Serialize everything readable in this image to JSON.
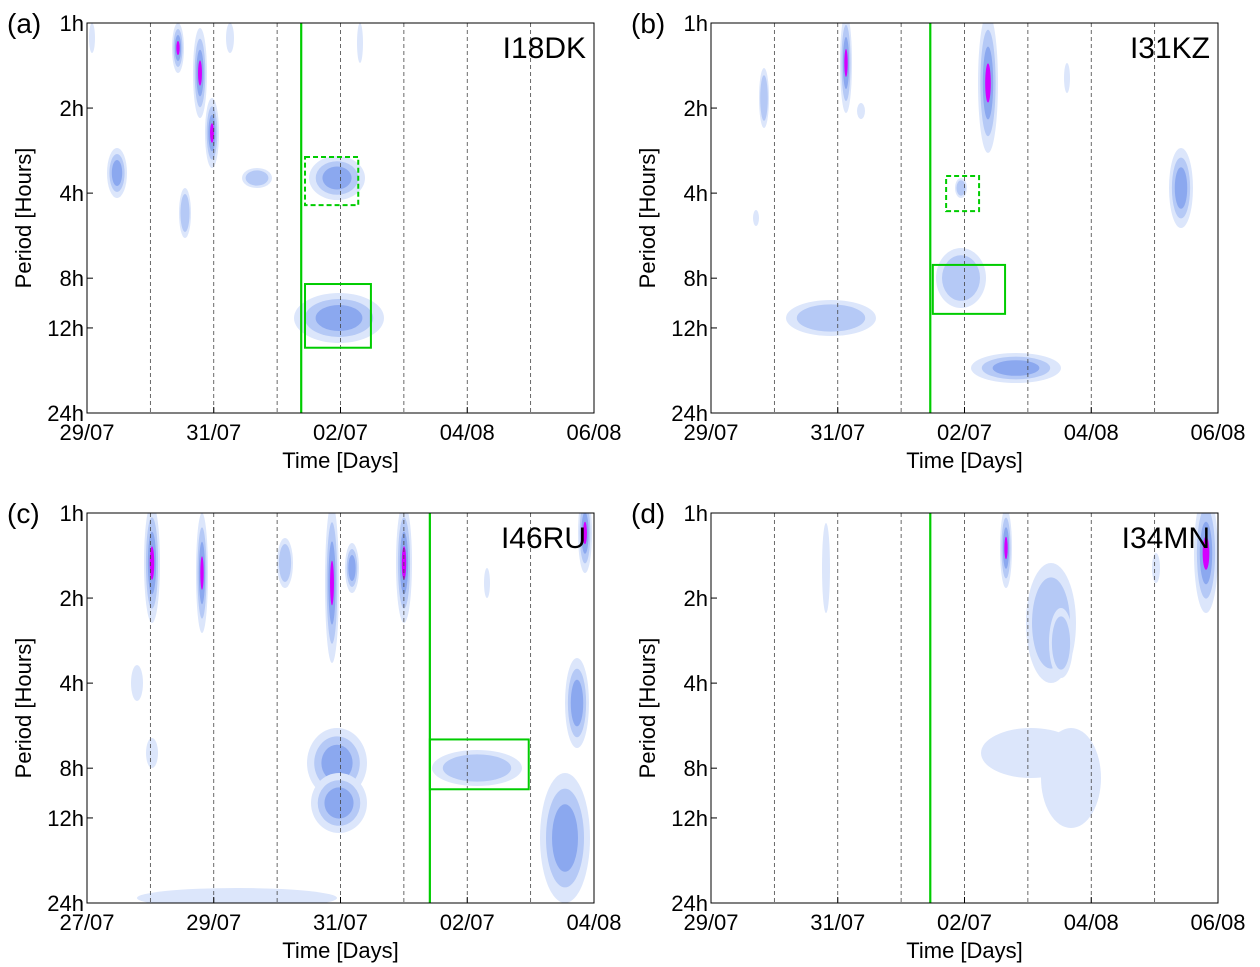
{
  "chart_data": [
    {
      "type": "contour",
      "panel_label": "(a)",
      "title": "I18DK",
      "xlabel": "Time [Days]",
      "ylabel": "Period [Hours]",
      "xlim": [
        0,
        8
      ],
      "xticks": [
        {
          "value": 0,
          "label": "29/07"
        },
        {
          "value": 2,
          "label": "31/07"
        },
        {
          "value": 4,
          "label": "02/07"
        },
        {
          "value": 6,
          "label": "04/08"
        },
        {
          "value": 8,
          "label": "06/08"
        }
      ],
      "ylim": [
        1,
        24
      ],
      "yticks": [
        {
          "value": 1,
          "label": "1h"
        },
        {
          "value": 2,
          "label": "2h"
        },
        {
          "value": 4,
          "label": "4h"
        },
        {
          "value": 8,
          "label": "8h"
        },
        {
          "value": 12,
          "label": "12h"
        },
        {
          "value": 24,
          "label": "24h"
        }
      ],
      "log_y": true,
      "day_lines": [
        1,
        2,
        3,
        4,
        5,
        6,
        7
      ],
      "event_line": 3.38,
      "event_color": "#00cc00",
      "boxes": [
        {
          "x": [
            3.44,
            4.28
          ],
          "y": [
            2.98,
            4.41
          ],
          "style": "dashed"
        },
        {
          "x": [
            3.44,
            4.48
          ],
          "y": [
            8.39,
            14.1
          ],
          "style": "solid"
        }
      ]
    },
    {
      "type": "contour",
      "panel_label": "(b)",
      "title": "I31KZ",
      "xlabel": "Time [Days]",
      "ylabel": "Period [Hours]",
      "xlim": [
        0,
        8
      ],
      "xticks": [
        {
          "value": 0,
          "label": "29/07"
        },
        {
          "value": 2,
          "label": "31/07"
        },
        {
          "value": 4,
          "label": "02/07"
        },
        {
          "value": 6,
          "label": "04/08"
        },
        {
          "value": 8,
          "label": "06/08"
        }
      ],
      "ylim": [
        1,
        24
      ],
      "yticks": [
        {
          "value": 1,
          "label": "1h"
        },
        {
          "value": 2,
          "label": "2h"
        },
        {
          "value": 4,
          "label": "4h"
        },
        {
          "value": 8,
          "label": "8h"
        },
        {
          "value": 12,
          "label": "12h"
        },
        {
          "value": 24,
          "label": "24h"
        }
      ],
      "log_y": true,
      "day_lines": [
        1,
        2,
        3,
        4,
        5,
        6,
        7
      ],
      "event_line": 3.46,
      "event_color": "#00cc00",
      "boxes": [
        {
          "x": [
            3.71,
            4.23
          ],
          "y": [
            3.48,
            4.63
          ],
          "style": "dashed"
        },
        {
          "x": [
            3.5,
            4.64
          ],
          "y": [
            7.18,
            10.7
          ],
          "style": "solid"
        }
      ]
    },
    {
      "type": "contour",
      "panel_label": "(c)",
      "title": "I46RU",
      "xlabel": "Time [Days]",
      "ylabel": "Period [Hours]",
      "xlim": [
        0,
        8
      ],
      "xticks": [
        {
          "value": 0,
          "label": "27/07"
        },
        {
          "value": 2,
          "label": "29/07"
        },
        {
          "value": 4,
          "label": "31/07"
        },
        {
          "value": 6,
          "label": "02/07"
        },
        {
          "value": 8,
          "label": "04/08"
        }
      ],
      "ylim": [
        1,
        24
      ],
      "yticks": [
        {
          "value": 1,
          "label": "1h"
        },
        {
          "value": 2,
          "label": "2h"
        },
        {
          "value": 4,
          "label": "4h"
        },
        {
          "value": 8,
          "label": "8h"
        },
        {
          "value": 12,
          "label": "12h"
        },
        {
          "value": 24,
          "label": "24h"
        }
      ],
      "log_y": true,
      "day_lines": [
        1,
        2,
        3,
        4,
        5,
        6,
        7
      ],
      "event_line": 5.41,
      "event_color": "#00cc00",
      "boxes": [
        {
          "x": [
            5.41,
            6.97
          ],
          "y": [
            6.33,
            9.5
          ],
          "style": "solid"
        }
      ]
    },
    {
      "type": "contour",
      "panel_label": "(d)",
      "title": "I34MN",
      "xlabel": "Time [Days]",
      "ylabel": "Period [Hours]",
      "xlim": [
        0,
        8
      ],
      "xticks": [
        {
          "value": 0,
          "label": "29/07"
        },
        {
          "value": 2,
          "label": "31/07"
        },
        {
          "value": 4,
          "label": "02/07"
        },
        {
          "value": 6,
          "label": "04/08"
        },
        {
          "value": 8,
          "label": "06/08"
        }
      ],
      "ylim": [
        1,
        24
      ],
      "yticks": [
        {
          "value": 1,
          "label": "1h"
        },
        {
          "value": 2,
          "label": "2h"
        },
        {
          "value": 4,
          "label": "4h"
        },
        {
          "value": 8,
          "label": "8h"
        },
        {
          "value": 12,
          "label": "12h"
        },
        {
          "value": 24,
          "label": "24h"
        }
      ],
      "log_y": true,
      "day_lines": [
        1,
        2,
        3,
        4,
        5,
        6,
        7
      ],
      "event_line": 3.46,
      "event_color": "#00cc00",
      "boxes": []
    }
  ]
}
